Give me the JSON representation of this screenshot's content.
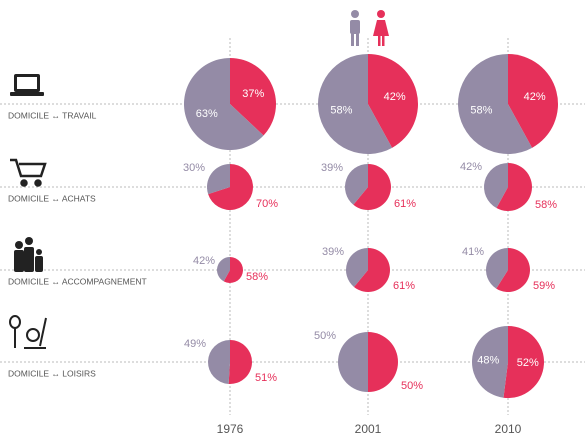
{
  "chart_data": {
    "type": "pie",
    "categories": [
      "1976",
      "2001",
      "2010"
    ],
    "colors": [
      "#948ba6",
      "#e6305a"
    ],
    "rows": [
      {
        "label": "DOMICILE ↔ TRAVAIL",
        "cells": [
          {
            "values": [
              63,
              37
            ],
            "value_labels": [
              "63%",
              "37%"
            ]
          },
          {
            "values": [
              58,
              42
            ],
            "value_labels": [
              "58%",
              "42%"
            ]
          },
          {
            "values": [
              58,
              42
            ],
            "value_labels": [
              "58%",
              "42%"
            ]
          }
        ]
      },
      {
        "label": "DOMICILE ↔ ACHATS",
        "cells": [
          {
            "values": [
              30,
              70
            ],
            "value_labels": [
              "30%",
              "70%"
            ]
          },
          {
            "values": [
              39,
              61
            ],
            "value_labels": [
              "39%",
              "61%"
            ]
          },
          {
            "values": [
              42,
              58
            ],
            "value_labels": [
              "42%",
              "58%"
            ]
          }
        ]
      },
      {
        "label": "DOMICILE ↔ ACCOMPAGNEMENT",
        "cells": [
          {
            "values": [
              42,
              58
            ],
            "value_labels": [
              "42%",
              "58%"
            ]
          },
          {
            "values": [
              39,
              61
            ],
            "value_labels": [
              "39%",
              "61%"
            ]
          },
          {
            "values": [
              41,
              59
            ],
            "value_labels": [
              "41%",
              "59%"
            ]
          }
        ]
      },
      {
        "label": "DOMICILE ↔ LOISIRS",
        "cells": [
          {
            "values": [
              49,
              51
            ],
            "value_labels": [
              "49%",
              "51%"
            ]
          },
          {
            "values": [
              50,
              50
            ],
            "value_labels": [
              "50%",
              "50%"
            ]
          },
          {
            "values": [
              48,
              52
            ],
            "value_labels": [
              "48%",
              "52%"
            ]
          }
        ]
      }
    ]
  }
}
